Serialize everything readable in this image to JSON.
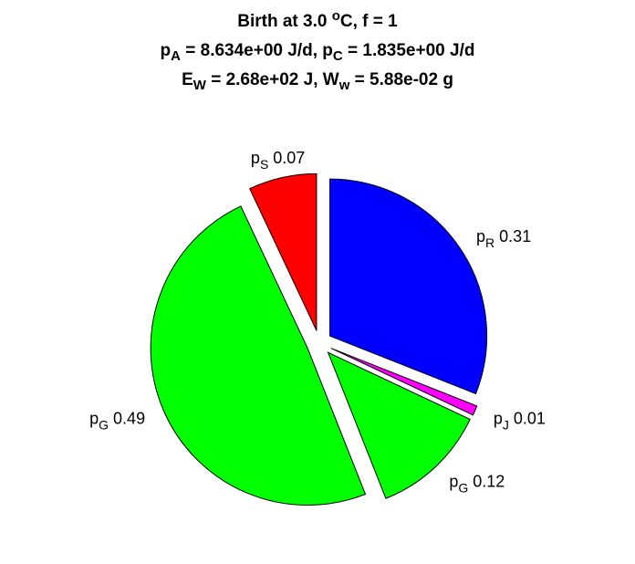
{
  "title": {
    "line1": {
      "text": "Birth at 3.0 ",
      "sup": "o",
      "tail": "C, f = 1"
    },
    "line2": {
      "a": "p",
      "a_sub": "A",
      "a_val": " = 8.634e+00 J/d, ",
      "b": "p",
      "b_sub": "C",
      "b_val": " = 1.835e+00 J/d"
    },
    "line3": {
      "a": "E",
      "a_sub": "W",
      "a_val": " = 2.68e+02 J, ",
      "b": "W",
      "b_sub": "w",
      "b_val": " = 5.88e-02 g"
    }
  },
  "chart_data": {
    "type": "pie",
    "start": "12 o'clock",
    "direction": "clockwise",
    "exploded": true,
    "slices": [
      {
        "symbol": "p",
        "sub": "R",
        "value": 0.31,
        "label": "0.31",
        "color": "#0000ff"
      },
      {
        "symbol": "p",
        "sub": "J",
        "value": 0.01,
        "label": "0.01",
        "color": "#ff00ff"
      },
      {
        "symbol": "p",
        "sub": "G",
        "value": 0.12,
        "label": "0.12",
        "color": "#00ff00"
      },
      {
        "symbol": "p",
        "sub": "G",
        "value": 0.49,
        "label": "0.49",
        "color": "#00ff00"
      },
      {
        "symbol": "p",
        "sub": "S",
        "value": 0.07,
        "label": "0.07",
        "color": "#ff0000"
      }
    ]
  }
}
